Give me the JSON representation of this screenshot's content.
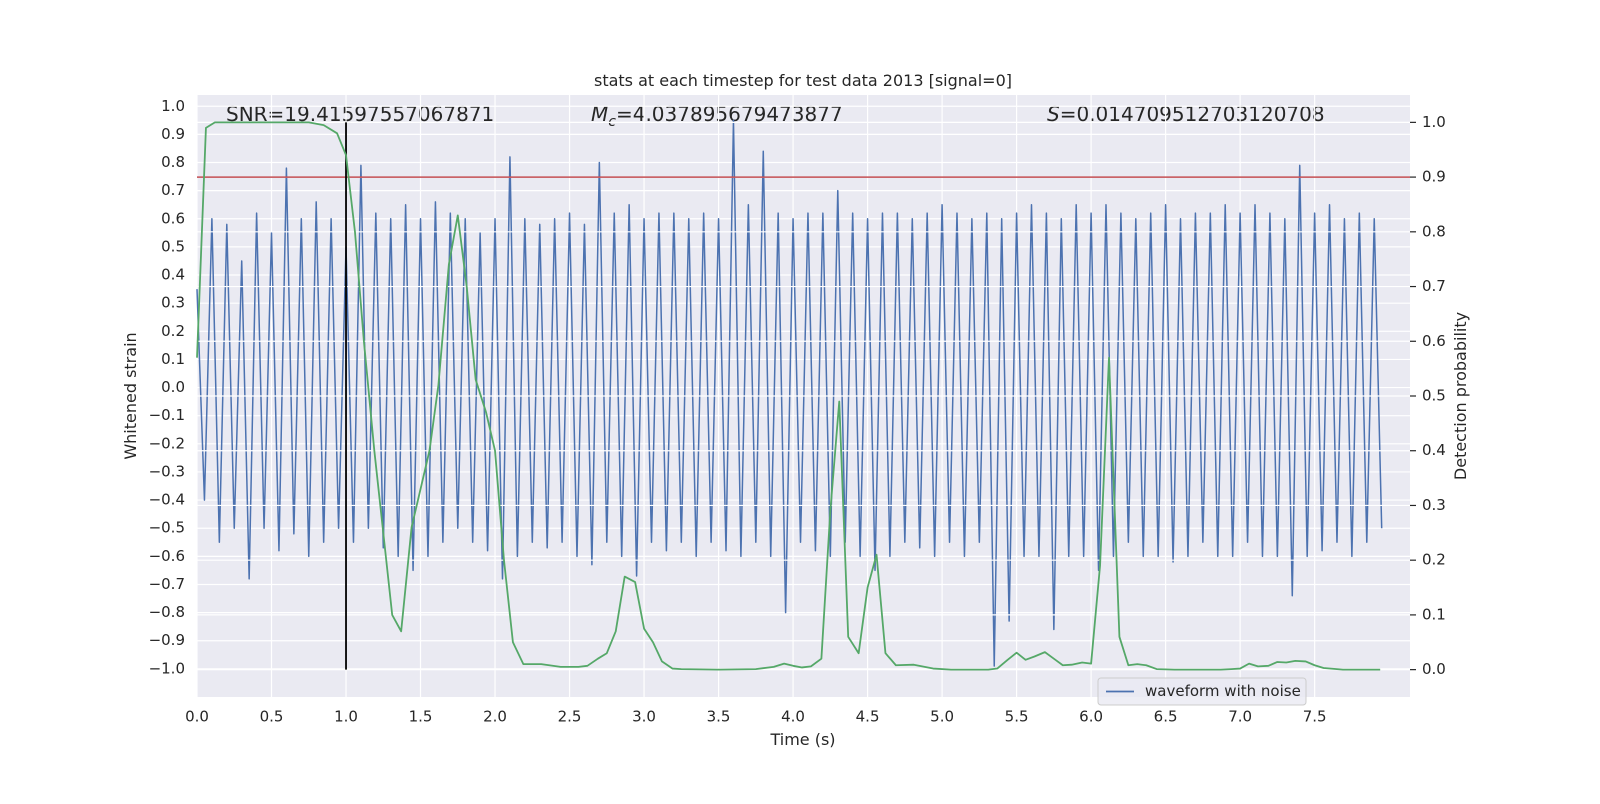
{
  "chart_data": {
    "type": "line",
    "title": "stats at each timestep for test data 2013 [signal=0]",
    "xlabel": "Time (s)",
    "ylabel": "Whitened strain",
    "y2label": "Detection probability",
    "annotations": [
      "SNR=19.41597557067871",
      {
        "symbol": "M",
        "subscript": "c",
        "text": "=4.037895679473877"
      },
      {
        "symbol": "S",
        "text": "=0.014709512703120708"
      }
    ],
    "xlim": [
      0,
      8.14
    ],
    "ylim": [
      -1.1,
      1.04
    ],
    "y2lim": [
      -0.05,
      1.05
    ],
    "grid": true,
    "xticks": [
      {
        "value": 0,
        "label": "0.0"
      },
      {
        "value": 0.5,
        "label": "0.5"
      },
      {
        "value": 1,
        "label": "1.0"
      },
      {
        "value": 1.5,
        "label": "1.5"
      },
      {
        "value": 2,
        "label": "2.0"
      },
      {
        "value": 2.5,
        "label": "2.5"
      },
      {
        "value": 3,
        "label": "3.0"
      },
      {
        "value": 3.5,
        "label": "3.5"
      },
      {
        "value": 4,
        "label": "4.0"
      },
      {
        "value": 4.5,
        "label": "4.5"
      },
      {
        "value": 5,
        "label": "5.0"
      },
      {
        "value": 5.5,
        "label": "5.5"
      },
      {
        "value": 6,
        "label": "6.0"
      },
      {
        "value": 6.5,
        "label": "6.5"
      },
      {
        "value": 7,
        "label": "7.0"
      },
      {
        "value": 7.5,
        "label": "7.5"
      }
    ],
    "yticks": [
      {
        "value": -1,
        "label": "−1.0"
      },
      {
        "value": -0.9,
        "label": "−0.9"
      },
      {
        "value": -0.8,
        "label": "−0.8"
      },
      {
        "value": -0.7,
        "label": "−0.7"
      },
      {
        "value": -0.6,
        "label": "−0.6"
      },
      {
        "value": -0.5,
        "label": "−0.5"
      },
      {
        "value": -0.4,
        "label": "−0.4"
      },
      {
        "value": -0.3,
        "label": "−0.3"
      },
      {
        "value": -0.2,
        "label": "−0.2"
      },
      {
        "value": -0.1,
        "label": "−0.1"
      },
      {
        "value": 0,
        "label": "0.0"
      },
      {
        "value": 0.1,
        "label": "0.1"
      },
      {
        "value": 0.2,
        "label": "0.2"
      },
      {
        "value": 0.3,
        "label": "0.3"
      },
      {
        "value": 0.4,
        "label": "0.4"
      },
      {
        "value": 0.5,
        "label": "0.5"
      },
      {
        "value": 0.6,
        "label": "0.6"
      },
      {
        "value": 0.7,
        "label": "0.7"
      },
      {
        "value": 0.8,
        "label": "0.8"
      },
      {
        "value": 0.9,
        "label": "0.9"
      },
      {
        "value": 1,
        "label": "1.0"
      }
    ],
    "y2ticks": [
      {
        "value": 0,
        "label": "0.0"
      },
      {
        "value": 0.1,
        "label": "0.1"
      },
      {
        "value": 0.2,
        "label": "0.2"
      },
      {
        "value": 0.3,
        "label": "0.3"
      },
      {
        "value": 0.4,
        "label": "0.4"
      },
      {
        "value": 0.5,
        "label": "0.5"
      },
      {
        "value": 0.6,
        "label": "0.6"
      },
      {
        "value": 0.7,
        "label": "0.7"
      },
      {
        "value": 0.8,
        "label": "0.8"
      },
      {
        "value": 0.9,
        "label": "0.9"
      },
      {
        "value": 1,
        "label": "1.0"
      }
    ],
    "hline_y2": {
      "value": 0.9,
      "color": "#c44e52"
    },
    "vline": {
      "x": 1.0,
      "y2span": [
        0,
        1
      ],
      "color": "#000000"
    },
    "series": [
      {
        "name": "waveform with noise",
        "color": "#4c72b0",
        "axis": "y",
        "x": [
          0,
          0.05,
          0.1,
          0.15,
          0.2,
          0.25,
          0.3,
          0.35,
          0.4,
          0.45,
          0.5,
          0.55,
          0.6,
          0.65,
          0.7,
          0.75,
          0.8,
          0.85,
          0.9,
          0.95,
          1,
          1.05,
          1.1,
          1.15,
          1.2,
          1.25,
          1.3,
          1.35,
          1.4,
          1.45,
          1.5,
          1.55,
          1.6,
          1.65,
          1.7,
          1.75,
          1.8,
          1.85,
          1.9,
          1.95,
          2,
          2.05,
          2.1,
          2.15,
          2.2,
          2.25,
          2.3,
          2.35,
          2.4,
          2.45,
          2.5,
          2.55,
          2.6,
          2.65,
          2.7,
          2.75,
          2.8,
          2.85,
          2.9,
          2.95,
          3,
          3.05,
          3.1,
          3.15,
          3.2,
          3.25,
          3.3,
          3.35,
          3.4,
          3.45,
          3.5,
          3.55,
          3.6,
          3.65,
          3.7,
          3.75,
          3.8,
          3.85,
          3.9,
          3.95,
          4,
          4.05,
          4.1,
          4.15,
          4.2,
          4.25,
          4.3,
          4.35,
          4.4,
          4.45,
          4.5,
          4.55,
          4.6,
          4.65,
          4.7,
          4.75,
          4.8,
          4.85,
          4.9,
          4.95,
          5,
          5.05,
          5.1,
          5.15,
          5.2,
          5.25,
          5.3,
          5.35,
          5.4,
          5.45,
          5.5,
          5.55,
          5.6,
          5.65,
          5.7,
          5.75,
          5.8,
          5.85,
          5.9,
          5.95,
          6,
          6.05,
          6.1,
          6.15,
          6.2,
          6.25,
          6.3,
          6.35,
          6.4,
          6.45,
          6.5,
          6.55,
          6.6,
          6.65,
          6.7,
          6.75,
          6.8,
          6.85,
          6.9,
          6.95,
          7,
          7.05,
          7.1,
          7.15,
          7.2,
          7.25,
          7.3,
          7.35,
          7.4,
          7.45,
          7.5,
          7.55,
          7.6,
          7.65,
          7.7,
          7.75,
          7.8,
          7.85,
          7.9,
          7.95
        ],
        "values": [
          0.35,
          -0.4,
          0.6,
          -0.55,
          0.58,
          -0.5,
          0.45,
          -0.68,
          0.62,
          -0.5,
          0.55,
          -0.58,
          0.78,
          -0.52,
          0.6,
          -0.6,
          0.66,
          -0.55,
          0.6,
          -0.5,
          0.5,
          -0.55,
          0.79,
          -0.5,
          0.62,
          -0.57,
          0.6,
          -0.6,
          0.65,
          -0.65,
          0.6,
          -0.6,
          0.66,
          -0.55,
          0.62,
          -0.5,
          0.6,
          -0.55,
          0.55,
          -0.58,
          0.6,
          -0.68,
          0.82,
          -0.6,
          0.6,
          -0.55,
          0.58,
          -0.57,
          0.6,
          -0.55,
          0.62,
          -0.6,
          0.58,
          -0.63,
          0.8,
          -0.55,
          0.62,
          -0.6,
          0.65,
          -0.67,
          0.6,
          -0.55,
          0.62,
          -0.58,
          0.62,
          -0.55,
          0.6,
          -0.6,
          0.62,
          -0.55,
          0.6,
          -0.58,
          0.95,
          -0.6,
          0.65,
          -0.55,
          0.84,
          -0.6,
          0.62,
          -0.8,
          0.6,
          -0.55,
          0.62,
          -0.58,
          0.62,
          -0.6,
          0.7,
          -0.55,
          0.62,
          -0.6,
          0.6,
          -0.65,
          0.62,
          -0.6,
          0.62,
          -0.55,
          0.6,
          -0.57,
          0.62,
          -0.6,
          0.65,
          -0.55,
          0.62,
          -0.6,
          0.6,
          -0.55,
          0.62,
          -0.99,
          0.6,
          -0.83,
          0.62,
          -0.6,
          0.65,
          -0.6,
          0.62,
          -0.86,
          0.6,
          -0.6,
          0.65,
          -0.6,
          0.62,
          -0.65,
          0.65,
          -0.6,
          0.62,
          -0.55,
          0.6,
          -0.6,
          0.62,
          -0.6,
          0.65,
          -0.62,
          0.6,
          -0.6,
          0.62,
          -0.55,
          0.62,
          -0.6,
          0.65,
          -0.6,
          0.62,
          -0.55,
          0.65,
          -0.6,
          0.62,
          -0.6,
          0.6,
          -0.74,
          0.79,
          -0.6,
          0.62,
          -0.58,
          0.65,
          -0.55,
          0.6,
          -0.6,
          0.62,
          -0.55,
          0.6,
          -0.5
        ]
      },
      {
        "color": "#55a868",
        "axis": "y2",
        "x": [
          0,
          0.06,
          0.12,
          0.5,
          0.75,
          0.85,
          0.94,
          1,
          1.06,
          1.12,
          1.19,
          1.25,
          1.31,
          1.37,
          1.44,
          1.5,
          1.56,
          1.62,
          1.69,
          1.75,
          1.81,
          1.87,
          1.94,
          2,
          2.06,
          2.12,
          2.19,
          2.31,
          2.44,
          2.56,
          2.62,
          2.69,
          2.75,
          2.81,
          2.87,
          2.94,
          3,
          3.06,
          3.12,
          3.19,
          3.25,
          3.5,
          3.75,
          3.87,
          3.94,
          4,
          4.06,
          4.12,
          4.19,
          4.25,
          4.31,
          4.37,
          4.44,
          4.5,
          4.56,
          4.62,
          4.69,
          4.81,
          4.94,
          5.06,
          5.31,
          5.37,
          5.44,
          5.5,
          5.56,
          5.62,
          5.69,
          5.75,
          5.81,
          5.87,
          5.94,
          6,
          6.06,
          6.12,
          6.19,
          6.25,
          6.31,
          6.37,
          6.44,
          6.56,
          6.87,
          6.94,
          7,
          7.06,
          7.12,
          7.19,
          7.25,
          7.31,
          7.37,
          7.44,
          7.5,
          7.56,
          7.69,
          7.94
        ],
        "values": [
          0.57,
          0.99,
          1.0,
          1.0,
          1.0,
          0.995,
          0.98,
          0.94,
          0.8,
          0.6,
          0.4,
          0.25,
          0.1,
          0.07,
          0.26,
          0.33,
          0.4,
          0.52,
          0.74,
          0.83,
          0.7,
          0.53,
          0.47,
          0.4,
          0.2,
          0.05,
          0.01,
          0.01,
          0.005,
          0.005,
          0.007,
          0.02,
          0.03,
          0.07,
          0.17,
          0.16,
          0.075,
          0.05,
          0.015,
          0.002,
          0.001,
          0.0,
          0.001,
          0.005,
          0.011,
          0.007,
          0.004,
          0.006,
          0.02,
          0.29,
          0.49,
          0.06,
          0.03,
          0.15,
          0.21,
          0.03,
          0.008,
          0.009,
          0.002,
          0.0,
          0.0,
          0.002,
          0.018,
          0.031,
          0.018,
          0.024,
          0.032,
          0.02,
          0.008,
          0.009,
          0.013,
          0.011,
          0.19,
          0.57,
          0.06,
          0.008,
          0.01,
          0.008,
          0.001,
          0.0,
          0.0,
          0.001,
          0.002,
          0.011,
          0.006,
          0.007,
          0.014,
          0.013,
          0.016,
          0.015,
          0.008,
          0.003,
          0.0,
          0.0
        ]
      }
    ]
  }
}
